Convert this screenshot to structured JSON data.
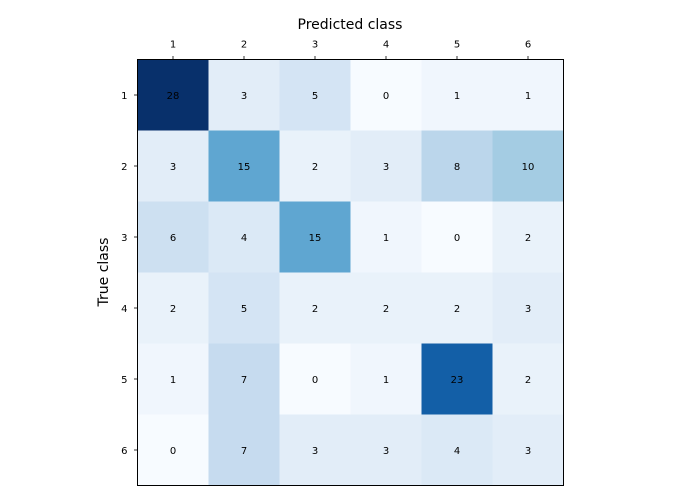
{
  "chart_data": {
    "type": "heatmap",
    "xlabel": "Predicted class",
    "ylabel": "True class",
    "x_categories": [
      "1",
      "2",
      "3",
      "4",
      "5",
      "6"
    ],
    "y_categories": [
      "1",
      "2",
      "3",
      "4",
      "5",
      "6"
    ],
    "values": [
      [
        28,
        3,
        5,
        0,
        1,
        1
      ],
      [
        3,
        15,
        2,
        3,
        8,
        10
      ],
      [
        6,
        4,
        15,
        1,
        0,
        2
      ],
      [
        2,
        5,
        2,
        2,
        2,
        3
      ],
      [
        1,
        7,
        0,
        1,
        23,
        2
      ],
      [
        0,
        7,
        3,
        3,
        4,
        3
      ]
    ],
    "x_axis_position": "top",
    "colormap": "Blues",
    "colors": {
      "low": "#f7fbff",
      "high": "#08306b",
      "label_text": "#000000"
    },
    "grid": false
  }
}
